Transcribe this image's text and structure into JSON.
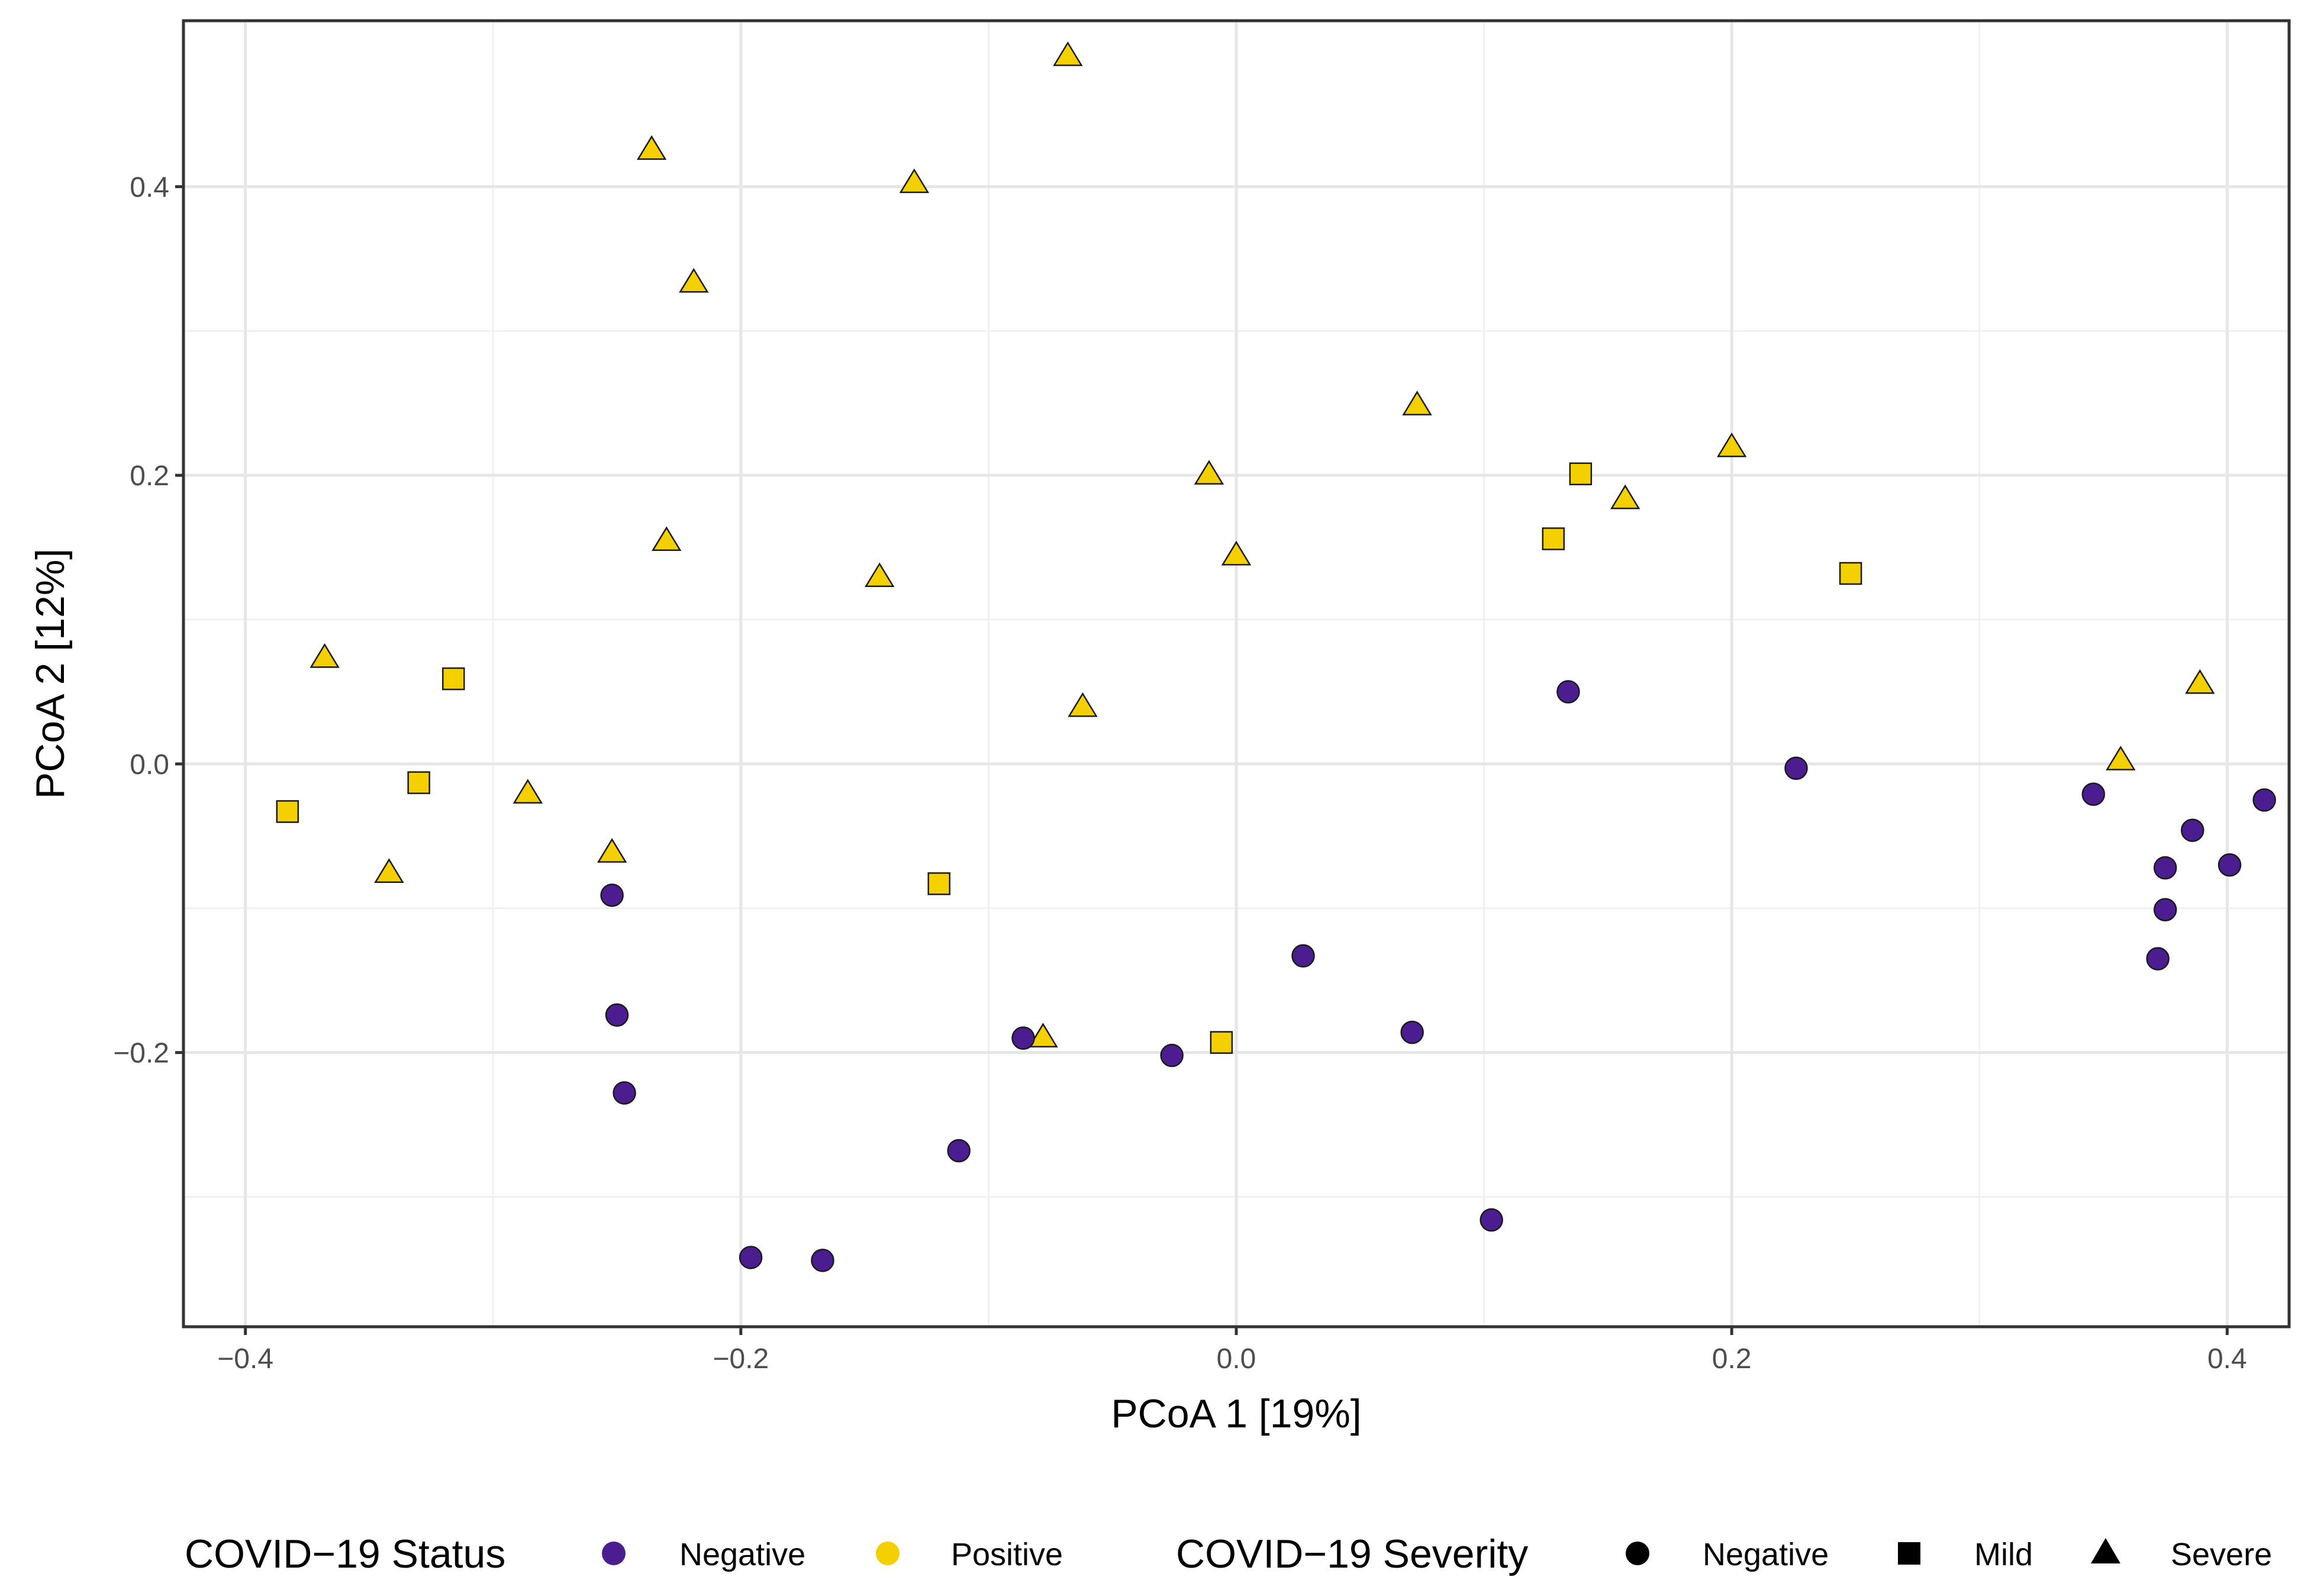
{
  "chart_data": {
    "type": "scatter",
    "title": "",
    "xlabel": "PCoA 1 [19%]",
    "ylabel": "PCoA 2 [12%]",
    "xlim": [
      -0.425,
      0.425
    ],
    "ylim": [
      -0.39,
      0.515
    ],
    "x_ticks": [
      -0.4,
      -0.2,
      0.0,
      0.2,
      0.4
    ],
    "x_tick_labels": [
      "−0.4",
      "−0.2",
      "0.0",
      "0.2",
      "0.4"
    ],
    "y_ticks": [
      -0.2,
      0.0,
      0.2,
      0.4
    ],
    "y_tick_labels": [
      "−0.2",
      "0.0",
      "0.2",
      "0.4"
    ],
    "x_minor_ticks": [
      -0.3,
      -0.1,
      0.1,
      0.3
    ],
    "y_minor_ticks": [
      -0.3,
      -0.1,
      0.1,
      0.3
    ],
    "grid": true,
    "colors": {
      "Negative": "#4b1d91",
      "Positive": "#f5d000"
    },
    "legend": {
      "position": "bottom",
      "status": {
        "title": "COVID−19 Status",
        "entries": [
          {
            "label": "Negative",
            "color": "#4b1d91"
          },
          {
            "label": "Positive",
            "color": "#f5d000"
          }
        ]
      },
      "severity": {
        "title": "COVID−19 Severity",
        "entries": [
          {
            "label": "Negative",
            "shape": "circle"
          },
          {
            "label": "Mild",
            "shape": "square"
          },
          {
            "label": "Severe",
            "shape": "triangle"
          }
        ]
      }
    },
    "points": [
      {
        "x": -0.068,
        "y": 0.49,
        "status": "Positive",
        "severity": "Severe"
      },
      {
        "x": -0.236,
        "y": 0.425,
        "status": "Positive",
        "severity": "Severe"
      },
      {
        "x": -0.13,
        "y": 0.402,
        "status": "Positive",
        "severity": "Severe"
      },
      {
        "x": -0.219,
        "y": 0.333,
        "status": "Positive",
        "severity": "Severe"
      },
      {
        "x": 0.073,
        "y": 0.248,
        "status": "Positive",
        "severity": "Severe"
      },
      {
        "x": 0.2,
        "y": 0.219,
        "status": "Positive",
        "severity": "Severe"
      },
      {
        "x": -0.011,
        "y": 0.2,
        "status": "Positive",
        "severity": "Severe"
      },
      {
        "x": 0.157,
        "y": 0.183,
        "status": "Positive",
        "severity": "Severe"
      },
      {
        "x": -0.23,
        "y": 0.154,
        "status": "Positive",
        "severity": "Severe"
      },
      {
        "x": 0.0,
        "y": 0.144,
        "status": "Positive",
        "severity": "Severe"
      },
      {
        "x": -0.144,
        "y": 0.129,
        "status": "Positive",
        "severity": "Severe"
      },
      {
        "x": -0.368,
        "y": 0.073,
        "status": "Positive",
        "severity": "Severe"
      },
      {
        "x": 0.389,
        "y": 0.055,
        "status": "Positive",
        "severity": "Severe"
      },
      {
        "x": -0.062,
        "y": 0.039,
        "status": "Positive",
        "severity": "Severe"
      },
      {
        "x": 0.357,
        "y": 0.002,
        "status": "Positive",
        "severity": "Severe"
      },
      {
        "x": -0.286,
        "y": -0.021,
        "status": "Positive",
        "severity": "Severe"
      },
      {
        "x": -0.252,
        "y": -0.062,
        "status": "Positive",
        "severity": "Severe"
      },
      {
        "x": -0.342,
        "y": -0.076,
        "status": "Positive",
        "severity": "Severe"
      },
      {
        "x": -0.078,
        "y": -0.19,
        "status": "Positive",
        "severity": "Severe"
      },
      {
        "x": 0.139,
        "y": 0.201,
        "status": "Positive",
        "severity": "Mild"
      },
      {
        "x": 0.128,
        "y": 0.156,
        "status": "Positive",
        "severity": "Mild"
      },
      {
        "x": 0.248,
        "y": 0.132,
        "status": "Positive",
        "severity": "Mild"
      },
      {
        "x": -0.316,
        "y": 0.059,
        "status": "Positive",
        "severity": "Mild"
      },
      {
        "x": -0.33,
        "y": -0.013,
        "status": "Positive",
        "severity": "Mild"
      },
      {
        "x": -0.383,
        "y": -0.033,
        "status": "Positive",
        "severity": "Mild"
      },
      {
        "x": -0.12,
        "y": -0.083,
        "status": "Positive",
        "severity": "Mild"
      },
      {
        "x": -0.006,
        "y": -0.193,
        "status": "Positive",
        "severity": "Mild"
      },
      {
        "x": 0.134,
        "y": 0.05,
        "status": "Negative",
        "severity": "Negative"
      },
      {
        "x": 0.226,
        "y": -0.003,
        "status": "Negative",
        "severity": "Negative"
      },
      {
        "x": 0.346,
        "y": -0.021,
        "status": "Negative",
        "severity": "Negative"
      },
      {
        "x": 0.415,
        "y": -0.025,
        "status": "Negative",
        "severity": "Negative"
      },
      {
        "x": 0.386,
        "y": -0.046,
        "status": "Negative",
        "severity": "Negative"
      },
      {
        "x": 0.401,
        "y": -0.07,
        "status": "Negative",
        "severity": "Negative"
      },
      {
        "x": 0.375,
        "y": -0.072,
        "status": "Negative",
        "severity": "Negative"
      },
      {
        "x": 0.375,
        "y": -0.101,
        "status": "Negative",
        "severity": "Negative"
      },
      {
        "x": 0.372,
        "y": -0.135,
        "status": "Negative",
        "severity": "Negative"
      },
      {
        "x": -0.252,
        "y": -0.091,
        "status": "Negative",
        "severity": "Negative"
      },
      {
        "x": 0.027,
        "y": -0.133,
        "status": "Negative",
        "severity": "Negative"
      },
      {
        "x": -0.25,
        "y": -0.174,
        "status": "Negative",
        "severity": "Negative"
      },
      {
        "x": 0.071,
        "y": -0.186,
        "status": "Negative",
        "severity": "Negative"
      },
      {
        "x": -0.086,
        "y": -0.19,
        "status": "Negative",
        "severity": "Negative"
      },
      {
        "x": -0.026,
        "y": -0.202,
        "status": "Negative",
        "severity": "Negative"
      },
      {
        "x": -0.247,
        "y": -0.228,
        "status": "Negative",
        "severity": "Negative"
      },
      {
        "x": -0.112,
        "y": -0.268,
        "status": "Negative",
        "severity": "Negative"
      },
      {
        "x": 0.103,
        "y": -0.316,
        "status": "Negative",
        "severity": "Negative"
      },
      {
        "x": -0.196,
        "y": -0.342,
        "status": "Negative",
        "severity": "Negative"
      },
      {
        "x": -0.167,
        "y": -0.344,
        "status": "Negative",
        "severity": "Negative"
      }
    ]
  }
}
